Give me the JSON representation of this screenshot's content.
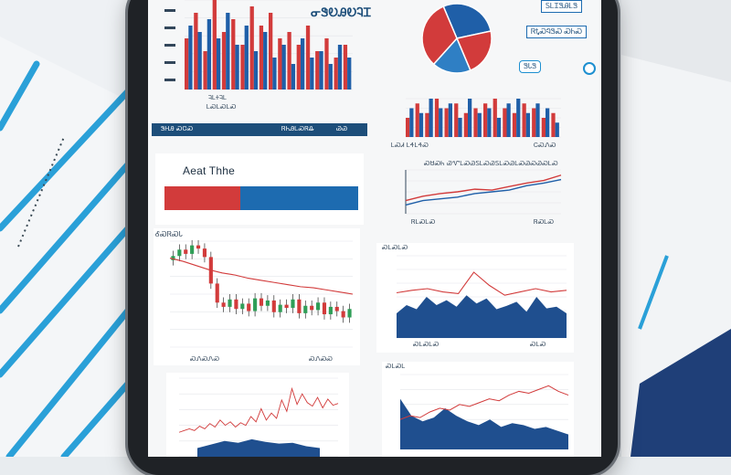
{
  "header": {
    "logo_text": "ᓂᏕᎧᎯᎧᎸᏆ"
  },
  "legend_tags": [
    "ᏚᏞᏆᏕᎯᏞᏕ",
    "ᏒᎿᏍᏄᏕᏍ ᏍᏂᏍ",
    "ᏕᏓᏕ"
  ],
  "stat_card": {
    "title": "Aeat Thhe",
    "split": 0.39
  },
  "panel_header": {
    "left": "ᏕᎻᎯ ᏍᏣᏍ",
    "middle": "ᏒᏂᎯᏞᏍᏒᎲ",
    "right": "ᏊᏊ"
  },
  "chart_labels": {
    "top_bar_x": "ᎸᏞᏐᎸᏞ",
    "top_bar_x2": "ᏞᏍᏞᏍᏞᏍ",
    "right_bar_x": "ᏞᏍᏗ ᏞᏎᏞᏎᏍ",
    "right_bar_x2": "ᏟᏍᏁᏍ",
    "line_title": "ᏍᏌᏍᏂ ᏊᏉᏞᏍᏊᏚᏞᏍᏊᏚᏞᏍᏊᏞᏍᏊᏍᏊᏍᏞᏍ",
    "line_x": "ᏒᏞᏍᏞᏍ",
    "line_x2": "ᏒᏍᏞᏍ",
    "candle_title": "ᎴᏍᏒᏍᏓ",
    "candle_x": "ᏍᏁᏍᏁᏍ",
    "candle_x2": "ᏍᏁᏍᏍ",
    "area_title": "ᏍᏞᏍᏞᏍ",
    "area_x": "ᏍᏞᏍᏞᏍ",
    "area_x2": "ᏍᏞᏍ",
    "bottom_left_title": "",
    "bottom_right_title": "ᏍᏞᏍᏞ"
  },
  "colors": {
    "blue": "#1f5fa8",
    "red": "#d23b3b",
    "navy": "#1d4e7a",
    "accent": "#1d8fd0"
  },
  "chart_data": [
    {
      "type": "bar",
      "series": [
        {
          "values": [
            8,
            12,
            6,
            14,
            9,
            11,
            7,
            13,
            10,
            12,
            8,
            9,
            7,
            10,
            6,
            8,
            5,
            7
          ]
        },
        {
          "values": [
            10,
            9,
            11,
            8,
            12,
            7,
            10,
            6,
            9,
            5,
            7,
            4,
            8,
            5,
            6,
            4,
            7,
            5
          ]
        }
      ]
    },
    {
      "type": "pie",
      "values": [
        28,
        22,
        18,
        32
      ]
    },
    {
      "type": "bar",
      "series": [
        {
          "values": [
            4,
            7,
            5,
            8,
            6,
            7,
            5,
            6,
            7,
            8,
            6,
            5,
            7,
            6,
            4,
            5
          ]
        },
        {
          "values": [
            6,
            5,
            8,
            6,
            7,
            4,
            8,
            5,
            6,
            4,
            7,
            8,
            5,
            7,
            6,
            3
          ]
        }
      ]
    },
    {
      "type": "line",
      "series": [
        {
          "values": [
            3,
            4,
            4.6,
            5,
            5.6,
            5.4,
            6.2,
            7,
            7.6,
            8.8
          ]
        },
        {
          "values": [
            2,
            3,
            3.4,
            3.8,
            4.6,
            5,
            5.4,
            6.4,
            7,
            7.8
          ]
        }
      ]
    },
    {
      "type": "line",
      "subtype": "candlestick",
      "closes": [
        8.6,
        9.2,
        8.8,
        9.6,
        9.3,
        8.5,
        6,
        4.2,
        3.8,
        4.5,
        3.6,
        4.1,
        3.4,
        4.6,
        3.9,
        4.4,
        3.3,
        4,
        3.7,
        4.5,
        3.2,
        3.9,
        3.5,
        4.2,
        3.1,
        3.8,
        3.4,
        2.8,
        3.6
      ],
      "trend": [
        8.4,
        8.1,
        7.7,
        7.3,
        7,
        6.8,
        6.5,
        6.3,
        6.1,
        5.9,
        5.7,
        5.6,
        5.4,
        5.2,
        5
      ]
    },
    {
      "type": "area",
      "area": [
        3,
        4,
        3.5,
        5,
        4,
        4.6,
        3.8,
        5.2,
        4.2,
        4.8,
        3.5,
        3.9,
        4.4,
        3.2,
        5,
        3.6,
        3.8,
        3
      ],
      "line": [
        5.5,
        5.8,
        6,
        5.6,
        5.4,
        8,
        6.4,
        5.2,
        5.6,
        6,
        5.6,
        5.8
      ]
    },
    {
      "type": "line",
      "values": [
        2.8,
        3,
        3.2,
        3,
        3.5,
        3.2,
        3.8,
        3.4,
        4.2,
        3.6,
        4,
        3.4,
        3.9,
        3.6,
        4.6,
        4,
        5.5,
        4.2,
        5,
        4.4,
        6.5,
        5.2,
        7.8,
        6,
        7.2,
        6.2,
        5.8,
        6.8,
        5.6,
        6.6,
        5.9,
        6.1
      ],
      "area": [
        1,
        1.4,
        1.8,
        1.6,
        2,
        1.7,
        1.5,
        1.6,
        1.2,
        1.0
      ]
    },
    {
      "type": "area",
      "area": [
        5.4,
        3.6,
        3,
        3.4,
        4.4,
        3.6,
        3,
        2.6,
        3.2,
        2.4,
        2.8,
        2.6,
        2.2,
        2.4,
        2.0,
        1.6
      ],
      "line": [
        3.2,
        3.6,
        3.4,
        4,
        4.4,
        4.2,
        4.8,
        4.6,
        5,
        5.4,
        5.2,
        5.8,
        6.2,
        6,
        6.4,
        6.8,
        6.2,
        5.8
      ]
    }
  ]
}
